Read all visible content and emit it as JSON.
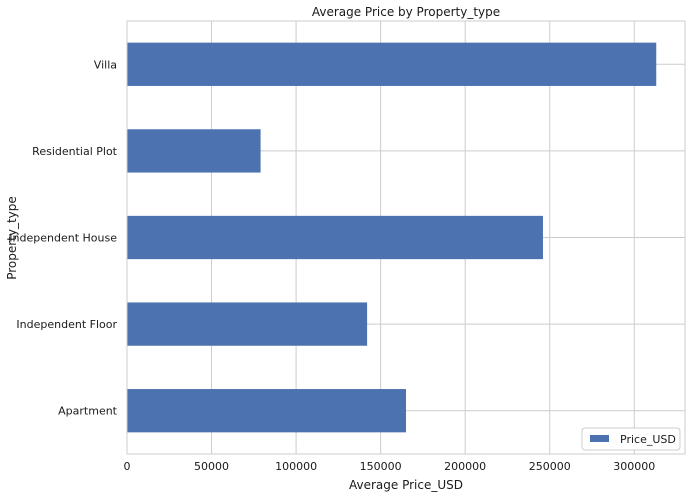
{
  "chart_data": {
    "type": "bar",
    "orientation": "horizontal",
    "title": "Average Price by Property_type",
    "xlabel": "Average Price_USD",
    "ylabel": "Property_type",
    "categories": [
      "Apartment",
      "Independent Floor",
      "Independent House",
      "Residential Plot",
      "Villa"
    ],
    "series": [
      {
        "name": "Price_USD",
        "values": [
          165000,
          142000,
          246000,
          79000,
          313000
        ],
        "color": "#4c72b0"
      }
    ],
    "xlim": [
      0,
      330000
    ],
    "xticks": [
      0,
      50000,
      100000,
      150000,
      200000,
      250000,
      300000
    ],
    "xtick_labels": [
      "0",
      "50000",
      "100000",
      "150000",
      "200000",
      "250000",
      "300000"
    ],
    "grid": true,
    "legend_position": "bottom-right"
  }
}
